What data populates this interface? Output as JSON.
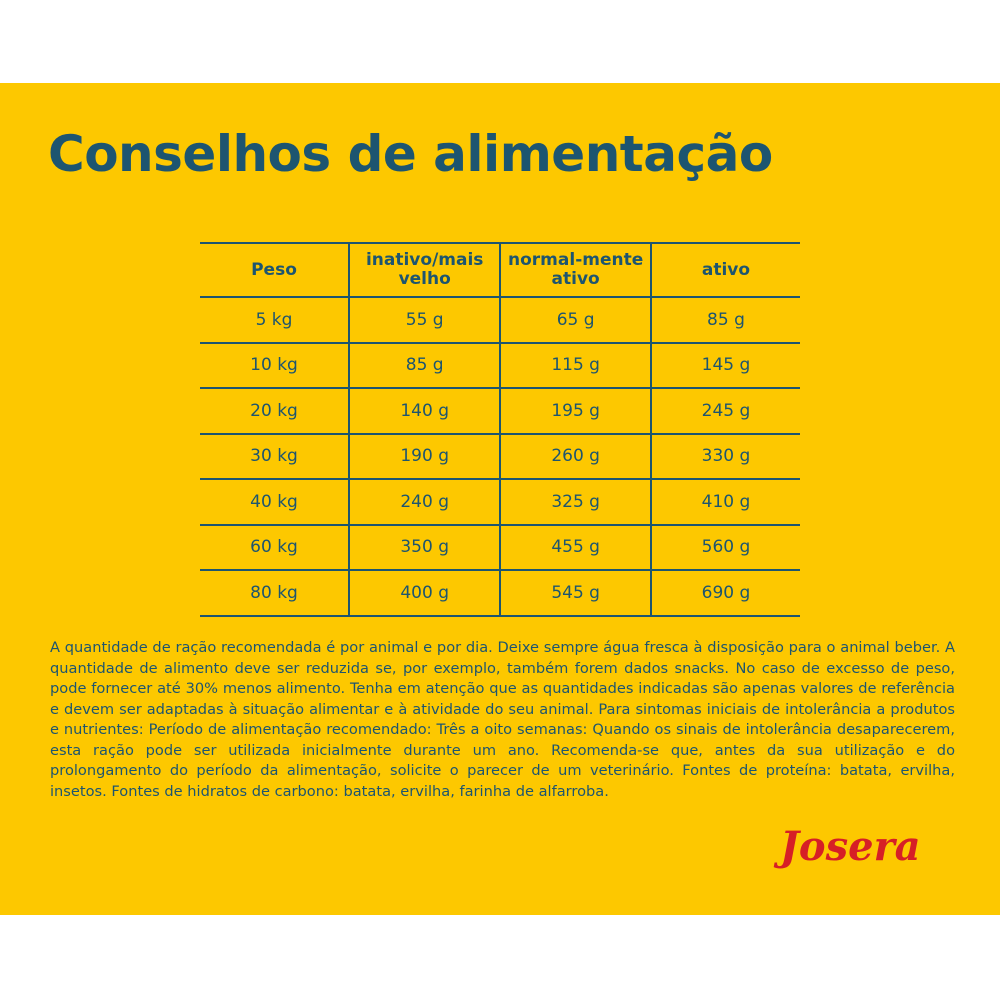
{
  "header": {
    "title": "Conselhos de alimentação"
  },
  "table": {
    "columns": [
      "Peso",
      "inativo/mais velho",
      "normal-mente ativo",
      "ativo"
    ],
    "rows": [
      [
        "5 kg",
        "55 g",
        "65 g",
        "85 g"
      ],
      [
        "10 kg",
        "85 g",
        "115 g",
        "145 g"
      ],
      [
        "20 kg",
        "140 g",
        "195 g",
        "245 g"
      ],
      [
        "30 kg",
        "190 g",
        "260 g",
        "330 g"
      ],
      [
        "40 kg",
        "240 g",
        "325 g",
        "410 g"
      ],
      [
        "60 kg",
        "350 g",
        "455 g",
        "560 g"
      ],
      [
        "80 kg",
        "400 g",
        "545 g",
        "690 g"
      ]
    ]
  },
  "note": "A quantidade de ração recomendada é por animal e por dia. Deixe sempre água fresca à disposição para o animal beber. A quantidade de alimento deve ser reduzida se, por exemplo, também forem dados snacks. No caso de excesso de peso, pode fornecer até 30% menos alimento. Tenha em atenção que as quantidades indicadas são apenas valores de referência e devem ser adaptadas à situação alimentar e à atividade do seu animal. Para sintomas iniciais de intolerância a produtos e nutrientes: Período de alimentação recomendado: Três a oito semanas: Quando os sinais de intolerância desaparecerem, esta ração pode ser utilizada inicialmente durante um ano. Recomenda-se que, antes da sua utilização e do prolongamento do período da alimentação, solicite o parecer de um veterinário. Fontes de proteína: batata, ervilha, insetos. Fontes de hidratos de carbono: batata, ervilha, farinha de alfarroba.",
  "logo": "Josera"
}
